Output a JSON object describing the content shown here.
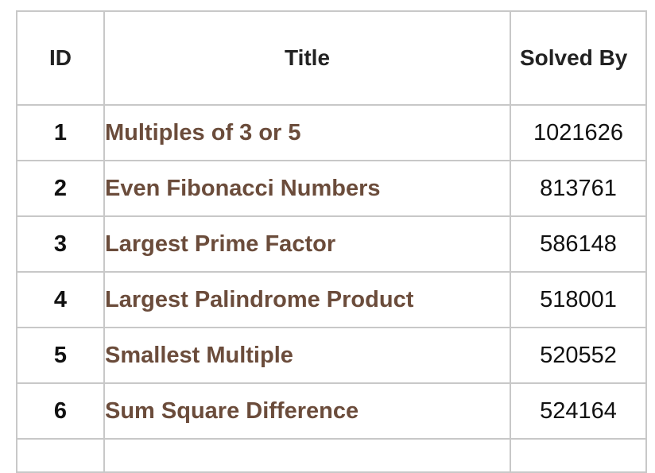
{
  "table": {
    "headers": {
      "id": "ID",
      "title": "Title",
      "solved_by": "Solved By"
    },
    "rows": [
      {
        "id": "1",
        "title": "Multiples of 3 or 5",
        "solved_by": "1021626"
      },
      {
        "id": "2",
        "title": "Even Fibonacci Numbers",
        "solved_by": "813761"
      },
      {
        "id": "3",
        "title": "Largest Prime Factor",
        "solved_by": "586148"
      },
      {
        "id": "4",
        "title": "Largest Palindrome Product",
        "solved_by": "518001"
      },
      {
        "id": "5",
        "title": "Smallest Multiple",
        "solved_by": "520552"
      },
      {
        "id": "6",
        "title": "Sum Square Difference",
        "solved_by": "524164"
      }
    ]
  },
  "colors": {
    "link": "#6b4c3b",
    "border": "#c8c8c8",
    "text": "#111111"
  }
}
